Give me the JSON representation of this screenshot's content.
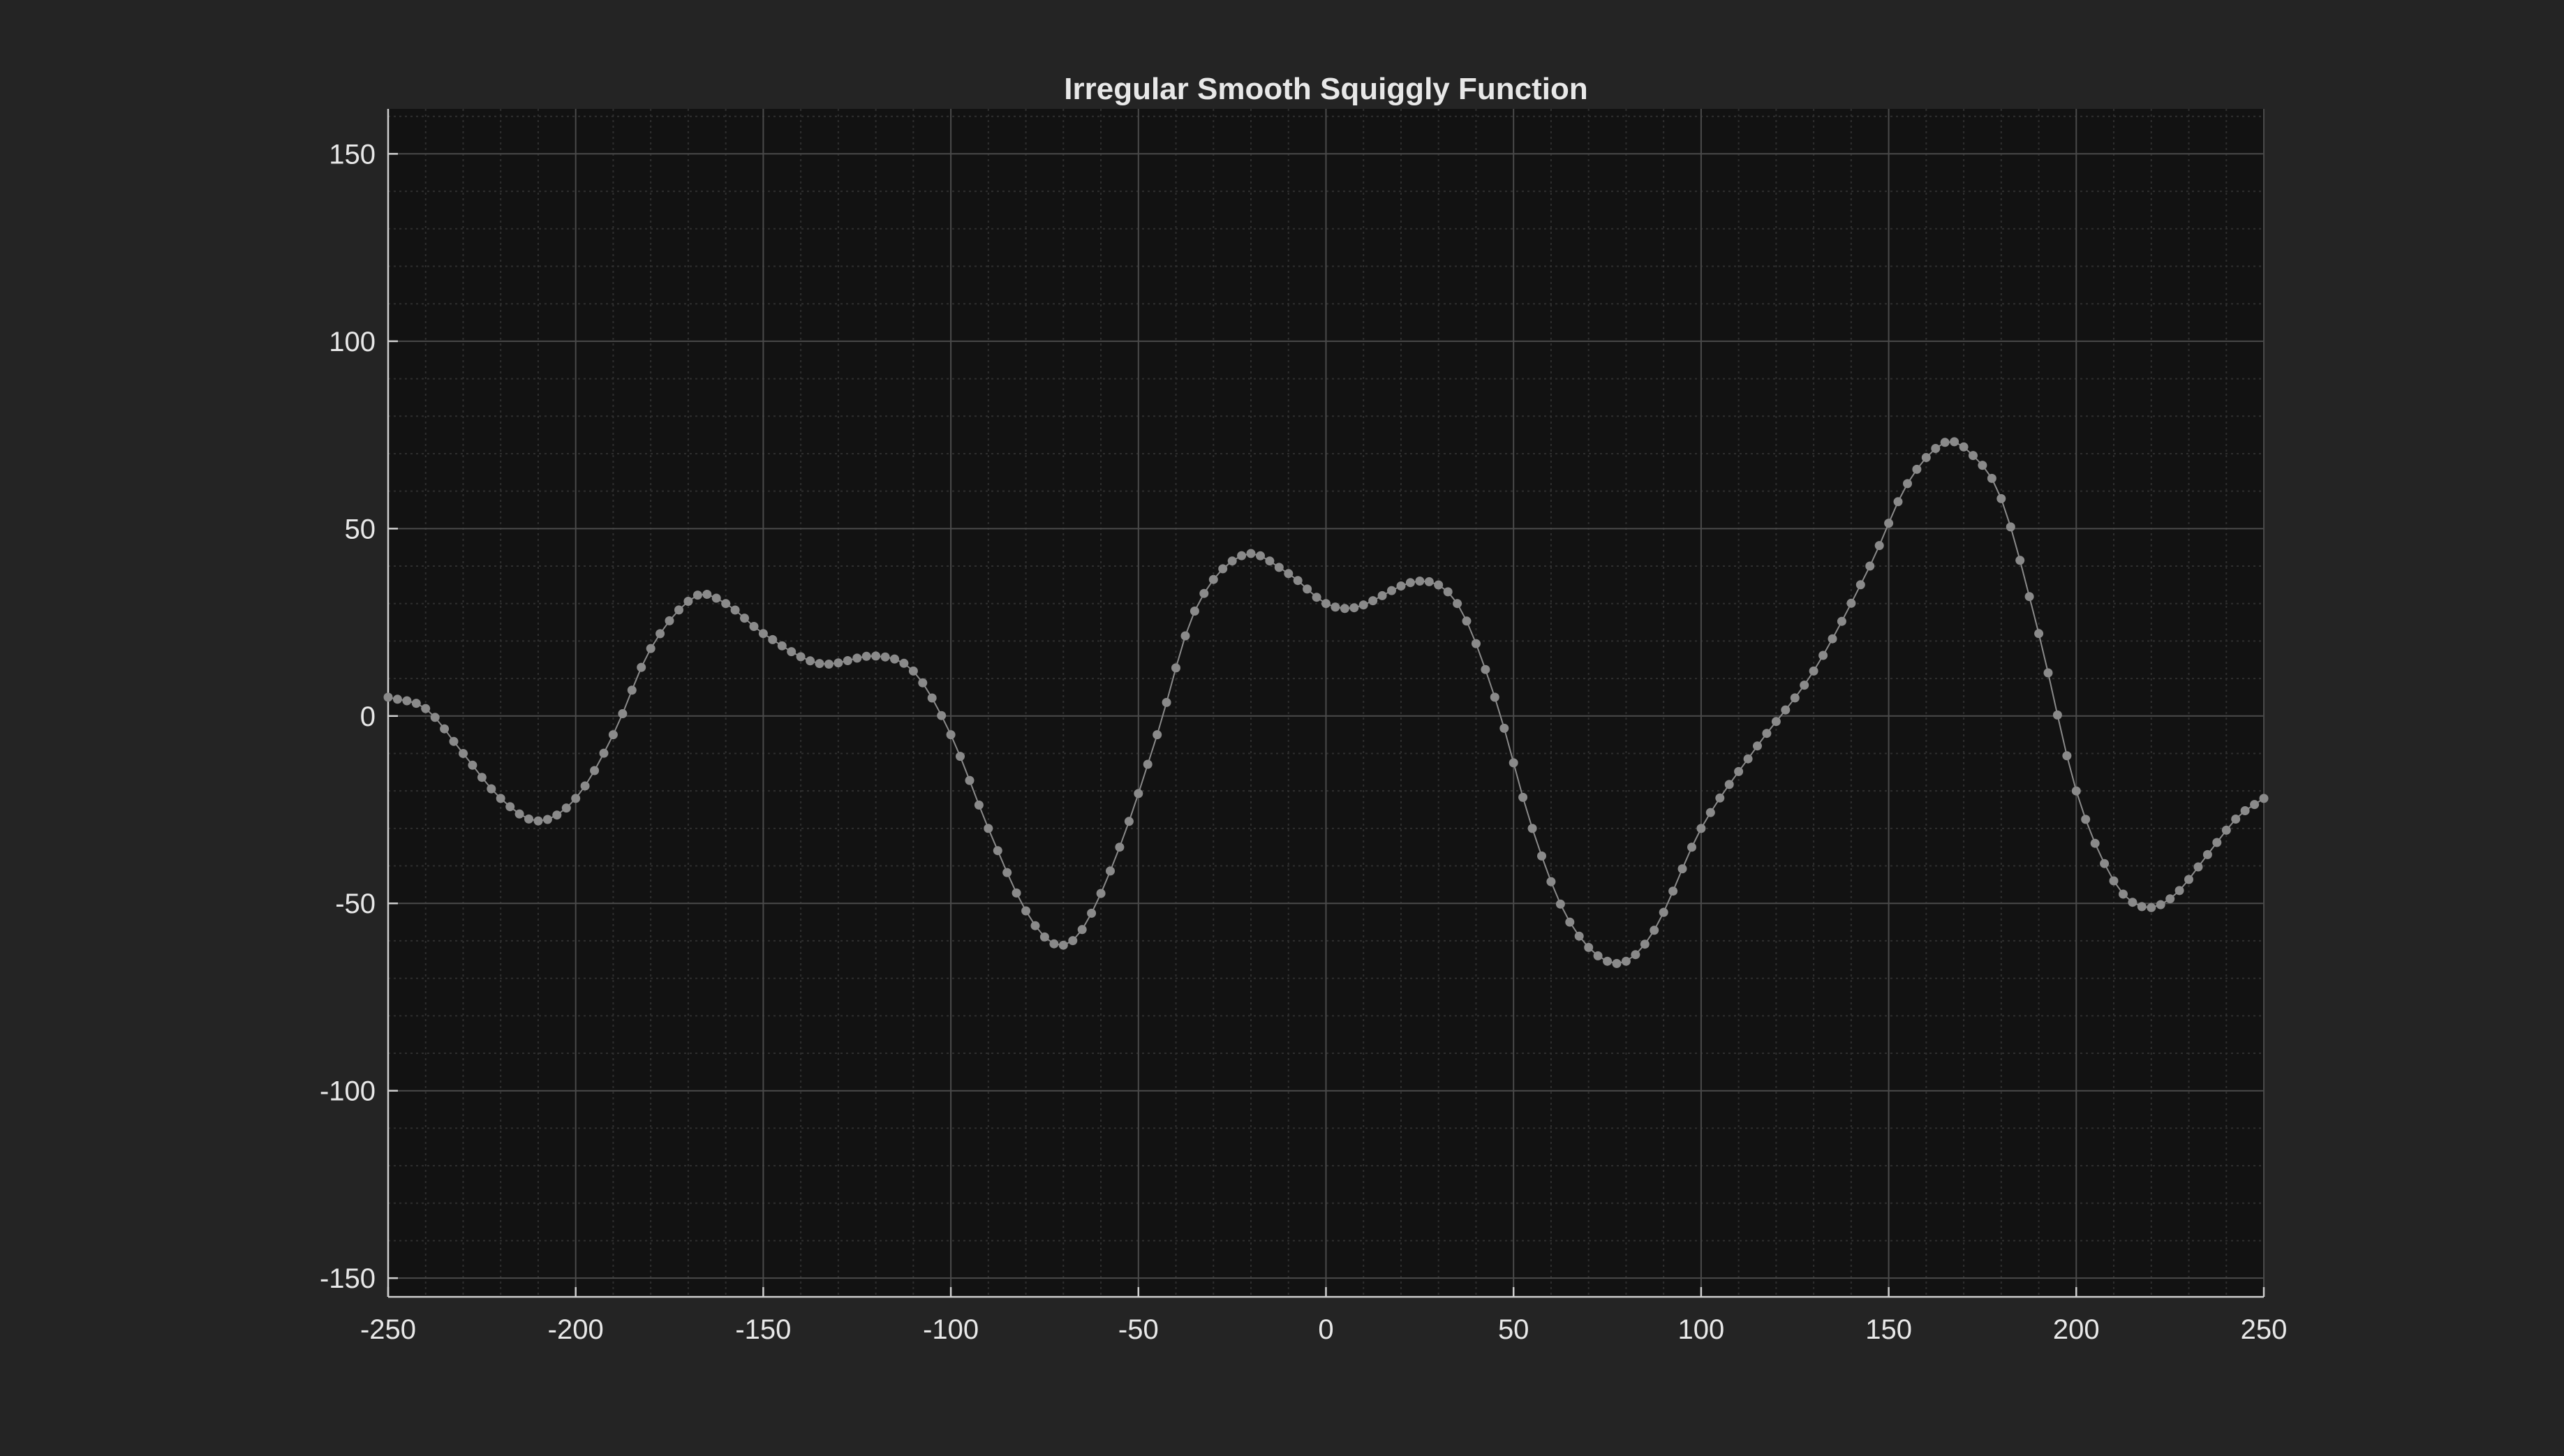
{
  "chart_data": {
    "type": "line",
    "title": "Irregular Smooth Squiggly Function",
    "xlabel": "",
    "ylabel": "",
    "xlim": [
      -250,
      250
    ],
    "ylim": [
      -155,
      162
    ],
    "xticks": [
      -250,
      -200,
      -150,
      -100,
      -50,
      0,
      50,
      100,
      150,
      200,
      250
    ],
    "yticks": [
      -150,
      -100,
      -50,
      0,
      50,
      100,
      150
    ],
    "grid": true,
    "minor_grid": true,
    "legend": "none",
    "markers": "circle",
    "colors": {
      "figure_background": "#242424",
      "axes_background": "#121212",
      "line": "#8a8a8a",
      "marker": "#8a8a8a",
      "grid_major": "#4a4a4a",
      "grid_minor": "#2f2f2f",
      "text": "#e8e8e8"
    },
    "series": [
      {
        "keypoints": [
          {
            "x": -250,
            "y": 5
          },
          {
            "x": -240,
            "y": 2
          },
          {
            "x": -230,
            "y": -10
          },
          {
            "x": -220,
            "y": -22
          },
          {
            "x": -210,
            "y": -28
          },
          {
            "x": -200,
            "y": -22
          },
          {
            "x": -190,
            "y": -5
          },
          {
            "x": -180,
            "y": 18
          },
          {
            "x": -168,
            "y": 32
          },
          {
            "x": -160,
            "y": 30
          },
          {
            "x": -150,
            "y": 22
          },
          {
            "x": -135,
            "y": 14
          },
          {
            "x": -120,
            "y": 16
          },
          {
            "x": -110,
            "y": 12
          },
          {
            "x": -100,
            "y": -5
          },
          {
            "x": -90,
            "y": -30
          },
          {
            "x": -80,
            "y": -52
          },
          {
            "x": -72,
            "y": -61
          },
          {
            "x": -65,
            "y": -57
          },
          {
            "x": -55,
            "y": -35
          },
          {
            "x": -45,
            "y": -5
          },
          {
            "x": -35,
            "y": 28
          },
          {
            "x": -22,
            "y": 43
          },
          {
            "x": -10,
            "y": 38
          },
          {
            "x": 0,
            "y": 30
          },
          {
            "x": 8,
            "y": 29
          },
          {
            "x": 25,
            "y": 36
          },
          {
            "x": 35,
            "y": 30
          },
          {
            "x": 45,
            "y": 5
          },
          {
            "x": 55,
            "y": -30
          },
          {
            "x": 65,
            "y": -55
          },
          {
            "x": 77,
            "y": -66
          },
          {
            "x": 87,
            "y": -58
          },
          {
            "x": 100,
            "y": -30
          },
          {
            "x": 115,
            "y": -8
          },
          {
            "x": 130,
            "y": 12
          },
          {
            "x": 145,
            "y": 40
          },
          {
            "x": 155,
            "y": 62
          },
          {
            "x": 165,
            "y": 73
          },
          {
            "x": 172,
            "y": 70
          },
          {
            "x": 180,
            "y": 58
          },
          {
            "x": 190,
            "y": 22
          },
          {
            "x": 200,
            "y": -20
          },
          {
            "x": 210,
            "y": -44
          },
          {
            "x": 218,
            "y": -51
          },
          {
            "x": 226,
            "y": -48
          },
          {
            "x": 235,
            "y": -37
          },
          {
            "x": 243,
            "y": -27
          },
          {
            "x": 250,
            "y": -22
          }
        ],
        "sample_step": 2.5
      }
    ]
  }
}
